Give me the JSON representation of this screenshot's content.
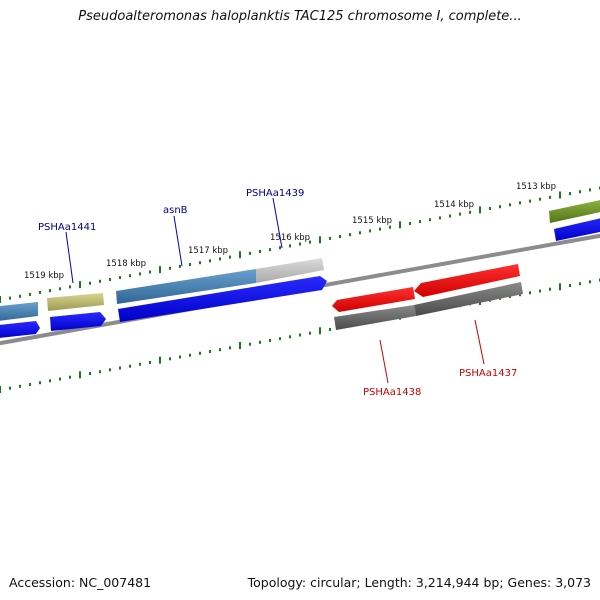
{
  "title": "Pseudoalteromonas haloplanktis TAC125 chromosome I, complete...",
  "footer": {
    "accession": "Accession: NC_007481",
    "summary": "Topology: circular; Length: 3,214,944 bp; Genes: 3,073"
  },
  "kbp_labels": [
    "1519 kbp",
    "1518 kbp",
    "1517 kbp",
    "1516 kbp",
    "1515 kbp",
    "1514 kbp",
    "1513 kbp"
  ],
  "gene_labels": {
    "PSHAa1441": "PSHAa1441",
    "asnB": "asnB",
    "PSHAa1439": "PSHAa1439",
    "PSHAa1438": "PSHAa1438",
    "PSHAa1437": "PSHAa1437"
  },
  "colors": {
    "forward_label": "#00008b",
    "reverse_label": "#cc0000",
    "tick": "#1a7a1a",
    "gene_blue": "#0000ee",
    "gene_steel": "#4682b4",
    "gene_olive": "#b5b36a",
    "gene_green": "#6b8e23",
    "gene_red": "#ee0000",
    "gene_gray": "#666666",
    "backbone": "#808080"
  }
}
